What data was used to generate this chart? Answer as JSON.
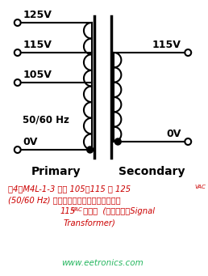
{
  "bg_color": "#ffffff",
  "primary_label": "Primary",
  "secondary_label": "Secondary",
  "primary_voltages": [
    "125V",
    "115V",
    "105V",
    "50/60 Hz",
    "0V"
  ],
  "secondary_voltages": [
    "115V",
    "0V"
  ],
  "caption_line1": "图4：M4L-1-3 接受 105、115 和 125",
  "caption_line1_sup": "VAC",
  "caption_line2": "(50/60 Hz) 的輸入電壓，同時在次級側提供",
  "caption_line3": "115",
  "caption_line3_sup": "VAC",
  "caption_line3_end": " 輸出。  (圖片來源：Signal",
  "caption_line4": "Transformer)",
  "watermark": "www.eetronics.com",
  "text_color": "#000000",
  "caption_color": "#cc0000",
  "watermark_color": "#00aa44"
}
